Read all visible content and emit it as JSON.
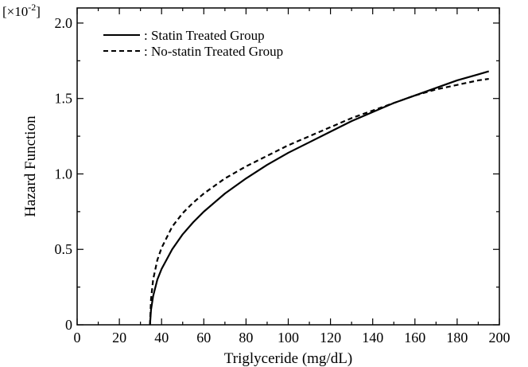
{
  "chart_data": {
    "type": "line",
    "xlabel": "Triglyceride (mg/dL)",
    "ylabel": "Hazard Function",
    "y_multiplier_base": "[×10",
    "y_multiplier_exp": "-2",
    "y_multiplier_close": "]",
    "xlim": [
      0,
      200
    ],
    "ylim": [
      0,
      2.1
    ],
    "x_ticks": [
      0,
      20,
      40,
      60,
      80,
      100,
      120,
      140,
      160,
      180,
      200
    ],
    "x_tick_labels": [
      "0",
      "20",
      "40",
      "60",
      "80",
      "100",
      "120",
      "140",
      "160",
      "180",
      "200"
    ],
    "y_ticks": [
      0,
      0.5,
      1.0,
      1.5,
      2.0
    ],
    "y_tick_labels": [
      "0",
      "0.5",
      "1.0",
      "1.5",
      "2.0"
    ],
    "legend_position": "top-left",
    "series": [
      {
        "name": ": Statin Treated Group",
        "style": "solid",
        "color": "#000000",
        "x": [
          34.5,
          35,
          36,
          38,
          40,
          45,
          50,
          55,
          60,
          70,
          80,
          90,
          100,
          110,
          120,
          130,
          140,
          150,
          160,
          170,
          180,
          190,
          195
        ],
        "y": [
          0,
          0.1,
          0.19,
          0.3,
          0.37,
          0.5,
          0.6,
          0.68,
          0.75,
          0.87,
          0.97,
          1.06,
          1.14,
          1.21,
          1.28,
          1.35,
          1.41,
          1.47,
          1.52,
          1.57,
          1.62,
          1.66,
          1.68
        ]
      },
      {
        "name": ": No-statin Treated Group",
        "style": "dashed",
        "color": "#000000",
        "x": [
          34.5,
          35,
          36,
          38,
          40,
          45,
          50,
          55,
          60,
          70,
          80,
          90,
          100,
          110,
          120,
          130,
          140,
          150,
          160,
          170,
          180,
          190,
          195
        ],
        "y": [
          0,
          0.17,
          0.3,
          0.43,
          0.51,
          0.65,
          0.74,
          0.81,
          0.87,
          0.97,
          1.05,
          1.12,
          1.19,
          1.25,
          1.31,
          1.37,
          1.42,
          1.47,
          1.52,
          1.56,
          1.59,
          1.62,
          1.63
        ]
      }
    ]
  }
}
